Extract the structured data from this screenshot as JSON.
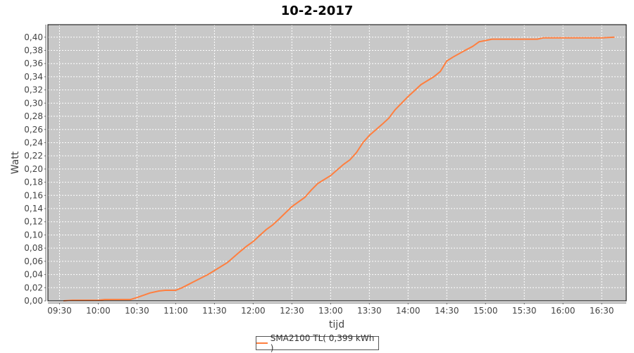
{
  "chart_data": {
    "type": "line",
    "title": "10-2-2017",
    "xlabel": "tijd",
    "ylabel": "Watt",
    "xlim": [
      "09:21",
      "16:49"
    ],
    "ylim": [
      0,
      0.419
    ],
    "grid": true,
    "legend_placement": "bottom",
    "x_ticks": [
      "09:30",
      "10:00",
      "10:30",
      "11:00",
      "11:30",
      "12:00",
      "12:30",
      "13:00",
      "13:30",
      "14:00",
      "14:30",
      "15:00",
      "15:30",
      "16:00",
      "16:30"
    ],
    "y_ticks": [
      "0,00",
      "0,02",
      "0,04",
      "0,06",
      "0,08",
      "0,10",
      "0,12",
      "0,14",
      "0,16",
      "0,18",
      "0,20",
      "0,22",
      "0,24",
      "0,26",
      "0,28",
      "0,30",
      "0,32",
      "0,34",
      "0,36",
      "0,38",
      "0,40"
    ],
    "background": "#c8c8c8",
    "series": [
      {
        "name": "SMA2100 TL( 0,399 kWh )",
        "color": "#ff7f3f",
        "x": [
          "09:33",
          "09:40",
          "10:00",
          "10:05",
          "10:25",
          "10:30",
          "10:40",
          "10:47",
          "10:52",
          "11:00",
          "11:05",
          "11:15",
          "11:25",
          "11:30",
          "11:40",
          "11:50",
          "11:55",
          "12:00",
          "12:05",
          "12:10",
          "12:15",
          "12:20",
          "12:30",
          "12:35",
          "12:40",
          "12:45",
          "12:50",
          "13:00",
          "13:10",
          "13:15",
          "13:20",
          "13:25",
          "13:30",
          "13:40",
          "13:45",
          "13:50",
          "14:00",
          "14:05",
          "14:10",
          "14:20",
          "14:25",
          "14:30",
          "14:35",
          "14:45",
          "14:50",
          "14:55",
          "15:00",
          "15:05",
          "15:40",
          "15:45",
          "16:30",
          "16:40"
        ],
        "values": [
          0.0,
          0.001,
          0.001,
          0.002,
          0.002,
          0.005,
          0.012,
          0.015,
          0.016,
          0.016,
          0.02,
          0.03,
          0.04,
          0.046,
          0.058,
          0.075,
          0.083,
          0.09,
          0.099,
          0.108,
          0.115,
          0.124,
          0.143,
          0.15,
          0.157,
          0.168,
          0.178,
          0.19,
          0.207,
          0.214,
          0.225,
          0.24,
          0.251,
          0.268,
          0.277,
          0.29,
          0.31,
          0.319,
          0.328,
          0.34,
          0.348,
          0.364,
          0.37,
          0.381,
          0.386,
          0.393,
          0.395,
          0.397,
          0.397,
          0.399,
          0.399,
          0.4
        ]
      }
    ]
  }
}
